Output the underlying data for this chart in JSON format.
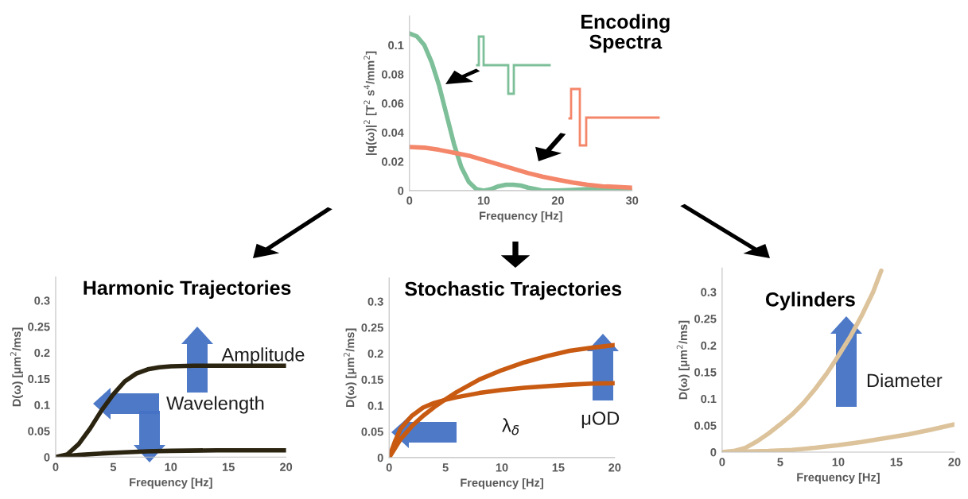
{
  "chart_data": [
    {
      "type": "line",
      "title": "Encoding\nSpectra",
      "xlabel": "Frequency [Hz]",
      "ylabel": "|q(ω)|$^{2}$ [T$^{2}$ s$^{4}$/mm$^{2}$]",
      "xlim": [
        0,
        30
      ],
      "xticks": [
        0,
        10,
        20,
        30
      ],
      "ylim": [
        0,
        0.12
      ],
      "yticks": [
        0,
        0.02,
        0.04,
        0.06,
        0.08,
        0.1
      ],
      "grid": false,
      "legend": false,
      "series": [
        {
          "color": "#7dbf98",
          "x": [
            0,
            1,
            2,
            3,
            4,
            5,
            6,
            7,
            8,
            9,
            10,
            11,
            12,
            13,
            14,
            15,
            16,
            17,
            18,
            20,
            22,
            24,
            26,
            28,
            30
          ],
          "values": [
            0.108,
            0.106,
            0.1,
            0.088,
            0.072,
            0.052,
            0.032,
            0.016,
            0.006,
            0.001,
            0.0,
            0.001,
            0.003,
            0.004,
            0.004,
            0.0035,
            0.002,
            0.001,
            0.0,
            0.0,
            0.0005,
            0.001,
            0.001,
            0.0005,
            0.0
          ]
        },
        {
          "color": "#f4866a",
          "x": [
            0,
            2,
            4,
            6,
            8,
            10,
            12,
            14,
            16,
            18,
            20,
            22,
            24,
            26,
            28,
            30
          ],
          "values": [
            0.03,
            0.0295,
            0.028,
            0.026,
            0.024,
            0.021,
            0.018,
            0.015,
            0.012,
            0.0095,
            0.0075,
            0.0055,
            0.004,
            0.003,
            0.0025,
            0.002
          ]
        }
      ]
    },
    {
      "type": "line",
      "title": "Harmonic Trajectories",
      "xlabel": "Frequency [Hz]",
      "ylabel": "D(ω) [μm$^{2}$/ms]",
      "xlim": [
        0,
        20
      ],
      "xticks": [
        0,
        5,
        10,
        15,
        20
      ],
      "ylim": [
        0,
        0.345
      ],
      "yticks": [
        0,
        0.05,
        0.1,
        0.15,
        0.2,
        0.25,
        0.3
      ],
      "grid": false,
      "legend": false,
      "annotations": [
        "Amplitude",
        "Wavelength"
      ],
      "series": [
        {
          "color": "#2b2410",
          "x": [
            0,
            1,
            2,
            3,
            4,
            5,
            6,
            7,
            8,
            9,
            10,
            12,
            20
          ],
          "values": [
            0,
            0.005,
            0.025,
            0.055,
            0.09,
            0.12,
            0.145,
            0.16,
            0.168,
            0.172,
            0.174,
            0.175,
            0.175
          ]
        },
        {
          "color": "#2b2410",
          "x": [
            0,
            2,
            4,
            6,
            8,
            10,
            14,
            20
          ],
          "values": [
            0,
            0.004,
            0.007,
            0.009,
            0.011,
            0.012,
            0.013,
            0.013
          ]
        }
      ]
    },
    {
      "type": "line",
      "title": "Stochastic Trajectories",
      "xlabel": "Frequency [Hz]",
      "ylabel": "D(ω) [μm$^{2}$/ms]",
      "xlim": [
        0,
        20
      ],
      "xticks": [
        0,
        5,
        10,
        15,
        20
      ],
      "ylim": [
        0,
        0.345
      ],
      "yticks": [
        0,
        0.05,
        0.1,
        0.15,
        0.2,
        0.25,
        0.3
      ],
      "grid": false,
      "legend": false,
      "annotations": [
        "λ$_{δ}$",
        "μOD"
      ],
      "series": [
        {
          "color": "#c85a12",
          "x": [
            0,
            1,
            2,
            3,
            4,
            5,
            6,
            8,
            10,
            12,
            14,
            16,
            18,
            20
          ],
          "values": [
            0,
            0.035,
            0.06,
            0.08,
            0.097,
            0.112,
            0.126,
            0.15,
            0.168,
            0.183,
            0.195,
            0.205,
            0.211,
            0.216
          ]
        },
        {
          "color": "#c85a12",
          "x": [
            0,
            0.5,
            1,
            2,
            3,
            4,
            5,
            6,
            8,
            10,
            12,
            14,
            16,
            18,
            20
          ],
          "values": [
            0,
            0.03,
            0.055,
            0.08,
            0.096,
            0.105,
            0.111,
            0.116,
            0.124,
            0.13,
            0.134,
            0.137,
            0.14,
            0.142,
            0.143
          ]
        }
      ]
    },
    {
      "type": "line",
      "title": "Cylinders",
      "xlabel": "Frequency [Hz]",
      "ylabel": "D(ω) [μm$^{2}$/ms]",
      "xlim": [
        0,
        20
      ],
      "xticks": [
        0,
        5,
        10,
        15,
        20
      ],
      "ylim": [
        0,
        0.345
      ],
      "yticks": [
        0,
        0.05,
        0.1,
        0.15,
        0.2,
        0.25,
        0.3
      ],
      "grid": false,
      "legend": false,
      "annotations": [
        "Diameter"
      ],
      "series": [
        {
          "color": "#dcc39b",
          "x": [
            0,
            1,
            2,
            3,
            4,
            5,
            6,
            7,
            8,
            9,
            10,
            11,
            12,
            13,
            13.7
          ],
          "values": [
            0,
            0.002,
            0.008,
            0.02,
            0.035,
            0.052,
            0.07,
            0.092,
            0.118,
            0.147,
            0.18,
            0.215,
            0.255,
            0.3,
            0.34
          ]
        },
        {
          "color": "#dcc39b",
          "x": [
            0,
            4,
            6,
            8,
            10,
            12,
            14,
            16,
            18,
            20
          ],
          "values": [
            0,
            0.002,
            0.004,
            0.008,
            0.013,
            0.019,
            0.026,
            0.033,
            0.042,
            0.052
          ]
        }
      ]
    }
  ]
}
